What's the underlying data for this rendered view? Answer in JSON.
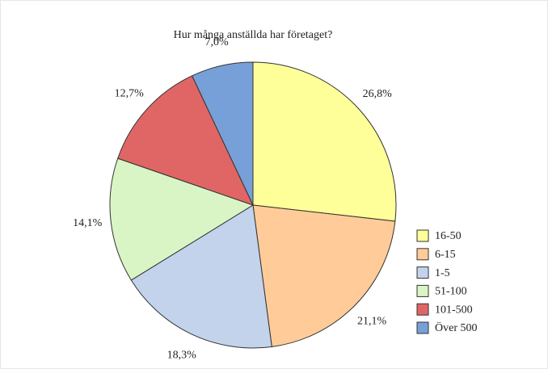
{
  "chart_data": {
    "type": "pie",
    "title": "Hur många anställda har företaget?",
    "categories": [
      "16-50",
      "6-15",
      "1-5",
      "51-100",
      "101-500",
      "Över 500"
    ],
    "values": [
      26.8,
      21.1,
      18.3,
      14.1,
      12.7,
      7.0
    ],
    "value_labels": [
      "26,8%",
      "21,1%",
      "18,3%",
      "14,1%",
      "12,7%",
      "7,0%"
    ],
    "colors": [
      "#ffff99",
      "#ffcc99",
      "#c3d3ec",
      "#d9f5c5",
      "#e06666",
      "#77a0d8"
    ],
    "legend": "right"
  }
}
